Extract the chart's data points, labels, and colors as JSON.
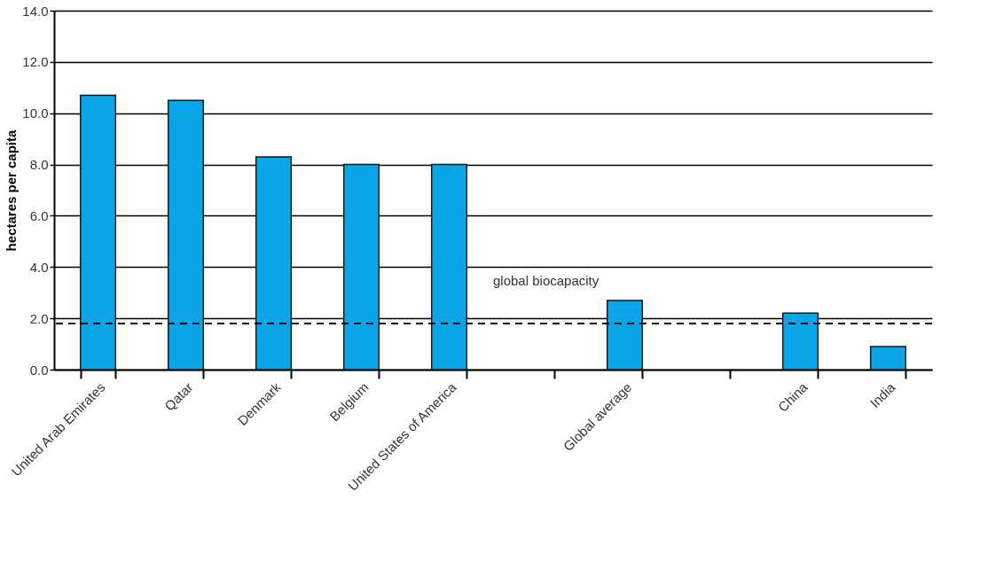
{
  "chart_data": {
    "type": "bar",
    "ylabel": "hectares per capita",
    "categories": [
      "United Arab Emirates",
      "Qatar",
      "Denmark",
      "Belgium",
      "United States of America",
      null,
      "Global average",
      null,
      "China",
      "India"
    ],
    "values": [
      10.7,
      10.5,
      8.3,
      8.0,
      8.0,
      null,
      2.7,
      null,
      2.2,
      0.9
    ],
    "color": "#0aa5e6",
    "ylim": [
      0,
      14
    ],
    "yticks": [
      {
        "value": 0,
        "label": "0.0"
      },
      {
        "value": 2,
        "label": "2.0"
      },
      {
        "value": 4,
        "label": "4.0"
      },
      {
        "value": 6,
        "label": "6.0"
      },
      {
        "value": 8,
        "label": "8.0"
      },
      {
        "value": 10,
        "label": "10.0"
      },
      {
        "value": 12,
        "label": "12.0"
      },
      {
        "value": 14,
        "label": "14.0"
      }
    ],
    "grid": "y",
    "ref_lines": [
      {
        "axis": "y",
        "value": 1.8,
        "label": "global biocapacity",
        "color": "#000000",
        "line_style": "dashed"
      }
    ]
  }
}
